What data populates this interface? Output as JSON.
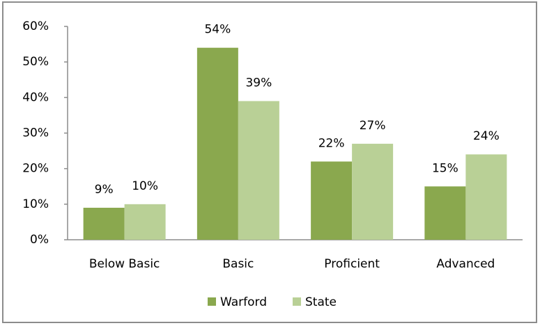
{
  "chart_data": {
    "type": "bar",
    "categories": [
      "Below Basic",
      "Basic",
      "Proficient",
      "Advanced"
    ],
    "series": [
      {
        "name": "Warford",
        "color": "#8aa84e",
        "values": [
          9,
          54,
          22,
          15
        ],
        "value_labels": [
          "9%",
          "54%",
          "22%",
          "15%"
        ]
      },
      {
        "name": "State",
        "color": "#b9d096",
        "values": [
          10,
          39,
          27,
          24
        ],
        "value_labels": [
          "10%",
          "39%",
          "27%",
          "24%"
        ]
      }
    ],
    "ylim": [
      0,
      60
    ],
    "yticks": [
      {
        "value": 0,
        "label": "0%"
      },
      {
        "value": 10,
        "label": "10%"
      },
      {
        "value": 20,
        "label": "20%"
      },
      {
        "value": 30,
        "label": "30%"
      },
      {
        "value": 40,
        "label": "40%"
      },
      {
        "value": 50,
        "label": "50%"
      },
      {
        "value": 60,
        "label": "60%"
      }
    ],
    "grid": false,
    "legend": "bottom"
  }
}
